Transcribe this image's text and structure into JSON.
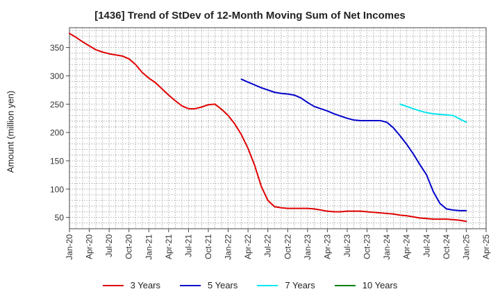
{
  "chart_data": {
    "type": "line",
    "title": "[1436]  Trend of StDev of 12-Month Moving Sum of Net Incomes",
    "ylabel": "Amount (million yen)",
    "ylim": [
      30,
      385
    ],
    "yticks": [
      50,
      100,
      150,
      200,
      250,
      300,
      350
    ],
    "xticks": [
      "Jan-20",
      "Apr-20",
      "Jul-20",
      "Oct-20",
      "Jan-21",
      "Apr-21",
      "Jul-21",
      "Oct-21",
      "Jan-22",
      "Apr-22",
      "Jul-22",
      "Oct-22",
      "Jan-23",
      "Apr-23",
      "Jul-23",
      "Oct-23",
      "Jan-24",
      "Apr-24",
      "Jul-24",
      "Oct-24",
      "Jan-25",
      "Apr-25"
    ],
    "grid": true,
    "legend_position": "bottom",
    "series": [
      {
        "name": "3 Years",
        "color": "#e00000",
        "x": [
          "Jan-20",
          "Feb-20",
          "Mar-20",
          "Apr-20",
          "May-20",
          "Jun-20",
          "Jul-20",
          "Aug-20",
          "Sep-20",
          "Oct-20",
          "Nov-20",
          "Dec-20",
          "Jan-21",
          "Feb-21",
          "Mar-21",
          "Apr-21",
          "May-21",
          "Jun-21",
          "Jul-21",
          "Aug-21",
          "Sep-21",
          "Oct-21",
          "Nov-21",
          "Dec-21",
          "Jan-22",
          "Feb-22",
          "Mar-22",
          "Apr-22",
          "May-22",
          "Jun-22",
          "Jul-22",
          "Aug-22",
          "Sep-22",
          "Oct-22",
          "Nov-22",
          "Dec-22",
          "Jan-23",
          "Feb-23",
          "Mar-23",
          "Apr-23",
          "May-23",
          "Jun-23",
          "Jul-23",
          "Aug-23",
          "Sep-23",
          "Oct-23",
          "Nov-23",
          "Dec-23",
          "Jan-24",
          "Feb-24",
          "Mar-24",
          "Apr-24",
          "May-24",
          "Jun-24",
          "Jul-24",
          "Aug-24",
          "Sep-24",
          "Oct-24",
          "Nov-24",
          "Dec-24",
          "Jan-25"
        ],
        "values": [
          375,
          368,
          360,
          353,
          346,
          342,
          339,
          337,
          335,
          330,
          320,
          306,
          296,
          288,
          277,
          266,
          256,
          247,
          242,
          242,
          245,
          249,
          250,
          241,
          230,
          215,
          196,
          172,
          142,
          105,
          80,
          69,
          67,
          66,
          66,
          66,
          66,
          65,
          63,
          61,
          60,
          60,
          61,
          61,
          61,
          60,
          59,
          58,
          57,
          56,
          54,
          53,
          51,
          49,
          48,
          47,
          47,
          47,
          46,
          45,
          43
        ],
        "labels": []
      },
      {
        "name": "5 Years",
        "color": "#0000cc",
        "x": [
          "Mar-22",
          "Apr-22",
          "May-22",
          "Jun-22",
          "Jul-22",
          "Aug-22",
          "Sep-22",
          "Oct-22",
          "Nov-22",
          "Dec-22",
          "Jan-23",
          "Feb-23",
          "Mar-23",
          "Apr-23",
          "May-23",
          "Jun-23",
          "Jul-23",
          "Aug-23",
          "Sep-23",
          "Oct-23",
          "Nov-23",
          "Dec-23",
          "Jan-24",
          "Feb-24",
          "Mar-24",
          "Apr-24",
          "May-24",
          "Jun-24",
          "Jul-24",
          "Aug-24",
          "Sep-24",
          "Oct-24",
          "Nov-24",
          "Dec-24",
          "Jan-25"
        ],
        "values": [
          294,
          289,
          284,
          279,
          275,
          271,
          269,
          268,
          266,
          261,
          253,
          246,
          242,
          238,
          233,
          229,
          225,
          222,
          221,
          221,
          221,
          221,
          218,
          208,
          194,
          179,
          162,
          143,
          125,
          96,
          75,
          65,
          63,
          62,
          62
        ],
        "labels": []
      },
      {
        "name": "7 Years",
        "color": "#00e5ee",
        "x": [
          "Mar-24",
          "Apr-24",
          "May-24",
          "Jun-24",
          "Jul-24",
          "Aug-24",
          "Sep-24",
          "Oct-24",
          "Nov-24",
          "Dec-24",
          "Jan-25"
        ],
        "values": [
          250,
          246,
          242,
          238,
          235,
          233,
          232,
          231,
          230,
          224,
          218
        ],
        "labels": []
      },
      {
        "name": "10 Years",
        "color": "#008000",
        "x": [],
        "values": [],
        "labels": []
      }
    ]
  }
}
